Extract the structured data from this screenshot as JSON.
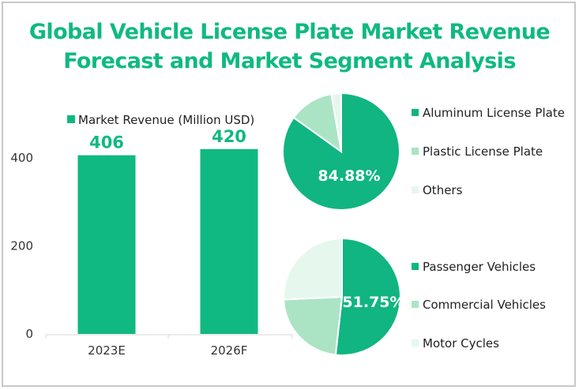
{
  "chart_data": [
    {
      "type": "bar",
      "title": "Global Vehicle License Plate Market Revenue Forecast and Market Segment Analysis",
      "legend": "Market Revenue (Million USD)",
      "legend_position": "top",
      "categories": [
        "2023E",
        "2026F"
      ],
      "values": [
        406,
        420
      ],
      "data_labels": [
        "406",
        "420"
      ],
      "ylim": [
        0,
        500
      ],
      "yticks": [
        "0",
        "200",
        "400"
      ],
      "xlabel": "",
      "ylabel": "",
      "grid": false,
      "color": "#10b981"
    },
    {
      "type": "pie",
      "title": "",
      "labels": [
        "Aluminum License Plate",
        "Plastic License Plate",
        "Others"
      ],
      "values": [
        84.88,
        12.4,
        2.72
      ],
      "data_label": "84.88%",
      "colors": [
        "#10b581",
        "#abe4c4",
        "#e6f7ee"
      ],
      "legend_position": "right"
    },
    {
      "type": "pie",
      "title": "",
      "labels": [
        "Passenger Vehicles",
        "Commercial Vehicles",
        "Motor Cycles"
      ],
      "values": [
        51.75,
        22.5,
        25.75
      ],
      "data_label": "51.75%",
      "colors": [
        "#10b581",
        "#abe4c4",
        "#e6f7ee"
      ],
      "legend_position": "right"
    }
  ]
}
